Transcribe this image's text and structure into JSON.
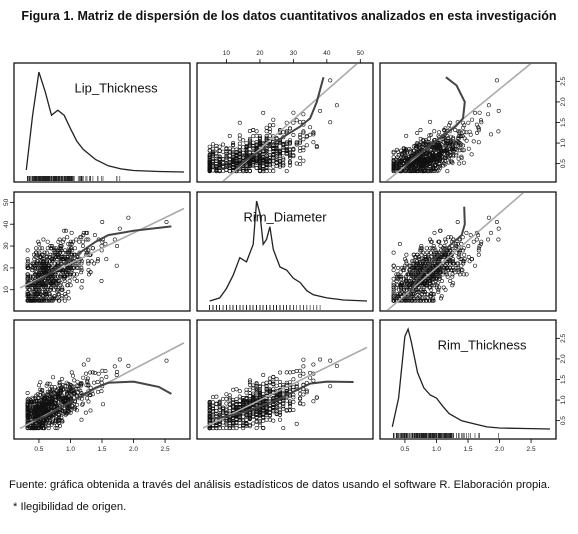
{
  "figure_title": "Figura 1. Matriz de dispersión de los datos cuantitativos analizados en esta investigación",
  "caption_source": "Fuente: gráfica obtenida a través del análisis estadísticos de datos usando el software R. Elaboración propia.",
  "caption_note": "* Ilegibilidad de origen.",
  "colors": {
    "points": "#111111",
    "smooth": "#444444",
    "fit_line": "#aaaaaa",
    "frame": "#000000"
  },
  "chart_data": {
    "type": "scatter",
    "variables": [
      "Lip_Thickness",
      "Rim_Diameter",
      "Rim_Thickness"
    ],
    "ranges": {
      "Lip_Thickness": [
        0.2,
        2.8
      ],
      "Rim_Diameter": [
        3,
        52
      ],
      "Rim_Thickness": [
        0.2,
        2.8
      ]
    },
    "tick_labels": {
      "top": [
        "10",
        "20",
        "30",
        "40",
        "50"
      ],
      "bottom": [
        "0.5",
        "1.0",
        "1.5",
        "2.0",
        "2.5"
      ],
      "left": [
        "10",
        "20",
        "30",
        "40",
        "50"
      ],
      "right_upper": [
        "0.5",
        "1.0",
        "1.5",
        "2.0",
        "2.5"
      ],
      "right_lower": [
        "0.5",
        "1.0",
        "1.5",
        "2.0",
        "2.5"
      ]
    },
    "density": {
      "Lip_Thickness": [
        [
          0.3,
          0.02
        ],
        [
          0.4,
          0.55
        ],
        [
          0.5,
          0.97
        ],
        [
          0.6,
          0.78
        ],
        [
          0.7,
          0.55
        ],
        [
          0.8,
          0.6
        ],
        [
          0.9,
          0.55
        ],
        [
          1.0,
          0.42
        ],
        [
          1.1,
          0.3
        ],
        [
          1.2,
          0.22
        ],
        [
          1.4,
          0.12
        ],
        [
          1.6,
          0.06
        ],
        [
          1.8,
          0.03
        ],
        [
          2.0,
          0.015
        ],
        [
          2.4,
          0.005
        ],
        [
          2.8,
          0.0
        ]
      ],
      "Rim_Diameter": [
        [
          5,
          0.0
        ],
        [
          8,
          0.03
        ],
        [
          10,
          0.12
        ],
        [
          12,
          0.25
        ],
        [
          14,
          0.42
        ],
        [
          16,
          0.38
        ],
        [
          18,
          0.55
        ],
        [
          19,
          0.97
        ],
        [
          20,
          0.85
        ],
        [
          21,
          0.55
        ],
        [
          22,
          0.6
        ],
        [
          23,
          0.72
        ],
        [
          24,
          0.5
        ],
        [
          26,
          0.33
        ],
        [
          28,
          0.3
        ],
        [
          30,
          0.22
        ],
        [
          32,
          0.18
        ],
        [
          34,
          0.1
        ],
        [
          36,
          0.06
        ],
        [
          40,
          0.03
        ],
        [
          45,
          0.01
        ],
        [
          52,
          0.0
        ]
      ],
      "Rim_Thickness": [
        [
          0.3,
          0.02
        ],
        [
          0.4,
          0.3
        ],
        [
          0.5,
          0.9
        ],
        [
          0.55,
          0.97
        ],
        [
          0.6,
          0.85
        ],
        [
          0.7,
          0.55
        ],
        [
          0.8,
          0.4
        ],
        [
          0.9,
          0.33
        ],
        [
          1.0,
          0.3
        ],
        [
          1.1,
          0.22
        ],
        [
          1.2,
          0.15
        ],
        [
          1.4,
          0.08
        ],
        [
          1.6,
          0.05
        ],
        [
          1.8,
          0.02
        ],
        [
          2.0,
          0.01
        ],
        [
          2.4,
          0.005
        ],
        [
          2.8,
          0.0
        ]
      ]
    },
    "smooth": {
      "rim_diameter_vs_lip_thickness": [
        [
          0.4,
          13
        ],
        [
          0.6,
          16
        ],
        [
          0.8,
          20
        ],
        [
          1.0,
          24
        ],
        [
          1.2,
          28
        ],
        [
          1.4,
          32
        ],
        [
          1.6,
          35
        ],
        [
          2.0,
          37
        ],
        [
          2.6,
          39
        ]
      ],
      "rim_thickness_vs_lip_thickness": [
        [
          0.4,
          0.5
        ],
        [
          0.6,
          0.6
        ],
        [
          0.8,
          0.78
        ],
        [
          1.0,
          0.95
        ],
        [
          1.2,
          1.12
        ],
        [
          1.4,
          1.3
        ],
        [
          1.6,
          1.42
        ],
        [
          2.0,
          1.45
        ],
        [
          2.4,
          1.32
        ],
        [
          2.6,
          1.15
        ]
      ],
      "rim_thickness_vs_rim_diameter": [
        [
          6,
          0.55
        ],
        [
          10,
          0.6
        ],
        [
          15,
          0.7
        ],
        [
          20,
          0.85
        ],
        [
          25,
          1.0
        ],
        [
          30,
          1.2
        ],
        [
          35,
          1.4
        ],
        [
          40,
          1.45
        ],
        [
          48,
          1.44
        ]
      ]
    },
    "linear_fit": {
      "rim_diameter_vs_lip_thickness": {
        "intercept": 8,
        "slope": 14
      },
      "rim_thickness_vs_lip_thickness": {
        "intercept": 0.15,
        "slope": 0.8
      },
      "rim_thickness_vs_rim_diameter": {
        "intercept": 0.2,
        "slope": 0.04
      }
    }
  }
}
